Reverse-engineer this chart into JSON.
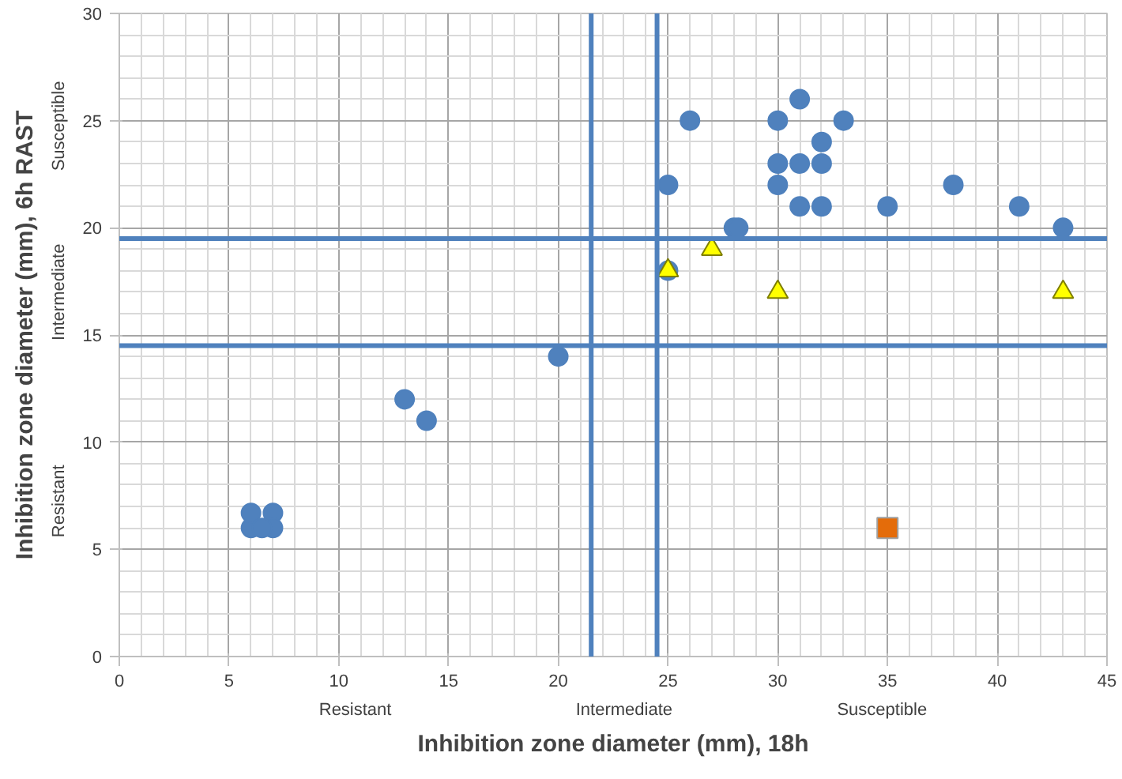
{
  "chart_data": {
    "type": "scatter",
    "xlabel": "Inhibition zone diameter (mm), 18h",
    "ylabel": "Inhibition zone diameter (mm), 6h RAST",
    "xlim": [
      0,
      45
    ],
    "xticks": [
      0,
      5,
      10,
      15,
      20,
      25,
      30,
      35,
      40,
      45
    ],
    "ylim": [
      0,
      30
    ],
    "yticks": [
      0,
      5,
      10,
      15,
      20,
      25,
      30
    ],
    "grid": true,
    "series": [
      {
        "color": "#4f81bd",
        "marker": "circle",
        "x": [
          25,
          26,
          30,
          31,
          33,
          32,
          30,
          31,
          32,
          30,
          31,
          32,
          35,
          38,
          41,
          43,
          28,
          28.2,
          25,
          20,
          13,
          14,
          6,
          6,
          7,
          7,
          6.5
        ],
        "values": [
          22,
          25,
          25,
          26,
          25,
          24,
          23,
          23,
          23,
          22,
          21,
          21,
          21,
          22,
          21,
          20,
          20,
          20,
          18,
          14,
          12,
          11,
          6,
          6.7,
          6.7,
          6,
          6
        ]
      },
      {
        "color": "#ffff00",
        "marker": "triangle",
        "x": [
          25,
          27,
          30,
          43
        ],
        "values": [
          18,
          19,
          17,
          17
        ]
      },
      {
        "color": "#e46c0a",
        "marker": "square",
        "x": [
          35
        ],
        "values": [
          6
        ]
      }
    ],
    "ref_lines": [
      {
        "axis": "x",
        "value": 21.5,
        "color": "#4f81bd"
      },
      {
        "axis": "x",
        "value": 24.5,
        "color": "#4f81bd"
      },
      {
        "axis": "y",
        "value": 19.5,
        "color": "#4f81bd"
      },
      {
        "axis": "y",
        "value": 14.5,
        "color": "#4f81bd"
      }
    ],
    "annotations": [
      "Resistant",
      "Intermediate",
      "Susceptible",
      "Resistant",
      "Intermediate",
      "Susceptible"
    ]
  }
}
